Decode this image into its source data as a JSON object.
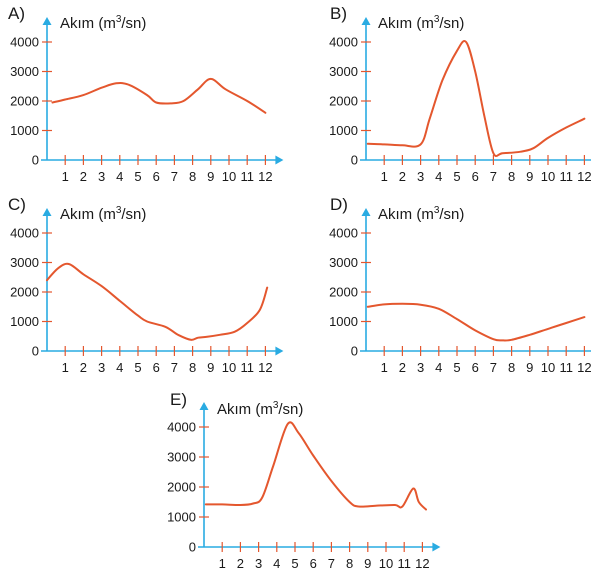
{
  "colors": {
    "axis": "#29abe2",
    "tick": "#e4572e",
    "line": "#e4572e",
    "text": "#1a1a1a"
  },
  "chart_data": [
    {
      "type": "line",
      "panel_label": "A)",
      "ylabel_main": "Akım (m",
      "ylabel_sup": "3",
      "ylabel_end": "/sn)",
      "x_ticks": [
        "1",
        "2",
        "3",
        "4",
        "5",
        "6",
        "7",
        "8",
        "9",
        "10",
        "11",
        "12"
      ],
      "y_ticks": [
        "0",
        "1000",
        "2000",
        "3000",
        "4000"
      ],
      "ylim": [
        0,
        4000
      ],
      "xlim": [
        0,
        12.5
      ],
      "x": [
        0.3,
        1,
        2,
        3,
        3.8,
        4.5,
        5.5,
        6,
        6.8,
        7.5,
        8.3,
        9,
        9.8,
        11,
        12
      ],
      "y": [
        1950,
        2050,
        2200,
        2450,
        2600,
        2550,
        2200,
        1950,
        1920,
        2000,
        2400,
        2750,
        2400,
        2000,
        1600
      ]
    },
    {
      "type": "line",
      "panel_label": "B)",
      "ylabel_main": "Akım (m",
      "ylabel_sup": "3",
      "ylabel_end": "/sn)",
      "x_ticks": [
        "1",
        "2",
        "3",
        "4",
        "5",
        "6",
        "7",
        "8",
        "9",
        "10",
        "11",
        "12"
      ],
      "y_ticks": [
        "0",
        "1000",
        "2000",
        "3000",
        "4000"
      ],
      "ylim": [
        0,
        4000
      ],
      "xlim": [
        0,
        12.5
      ],
      "x": [
        0.1,
        1,
        2,
        3,
        3.5,
        4.2,
        5,
        5.5,
        6,
        6.5,
        7,
        7.5,
        8.5,
        9.2,
        10,
        11,
        12
      ],
      "y": [
        550,
        530,
        500,
        530,
        1400,
        2700,
        3700,
        4000,
        3000,
        1500,
        230,
        230,
        280,
        400,
        750,
        1100,
        1400
      ]
    },
    {
      "type": "line",
      "panel_label": "C)",
      "ylabel_main": "Akım (m",
      "ylabel_sup": "3",
      "ylabel_end": "/sn)",
      "x_ticks": [
        "1",
        "2",
        "3",
        "4",
        "5",
        "6",
        "7",
        "8",
        "9",
        "10",
        "11",
        "12"
      ],
      "y_ticks": [
        "0",
        "1000",
        "2000",
        "3000",
        "4000"
      ],
      "ylim": [
        0,
        4000
      ],
      "xlim": [
        0,
        12.5
      ],
      "x": [
        0,
        0.6,
        1.2,
        2,
        3,
        4,
        5,
        5.5,
        6.5,
        7.2,
        7.9,
        8.3,
        8.8,
        9.5,
        10.3,
        11,
        11.7,
        12.1
      ],
      "y": [
        2400,
        2800,
        2950,
        2600,
        2200,
        1700,
        1200,
        1000,
        820,
        550,
        380,
        450,
        480,
        550,
        650,
        950,
        1400,
        2150
      ]
    },
    {
      "type": "line",
      "panel_label": "D)",
      "ylabel_main": "Akım (m",
      "ylabel_sup": "3",
      "ylabel_end": "/sn)",
      "x_ticks": [
        "1",
        "2",
        "3",
        "4",
        "5",
        "6",
        "7",
        "8",
        "9",
        "10",
        "11",
        "12"
      ],
      "y_ticks": [
        "0",
        "1000",
        "2000",
        "3000",
        "4000"
      ],
      "ylim": [
        0,
        4000
      ],
      "xlim": [
        0,
        12.5
      ],
      "x": [
        0.1,
        1,
        2,
        3,
        4,
        5,
        6,
        7,
        7.5,
        8,
        9,
        10,
        11,
        12
      ],
      "y": [
        1500,
        1580,
        1600,
        1570,
        1430,
        1080,
        700,
        400,
        360,
        380,
        550,
        750,
        950,
        1150
      ]
    },
    {
      "type": "line",
      "panel_label": "E)",
      "ylabel_main": "Akım (m",
      "ylabel_sup": "3",
      "ylabel_end": "/sn)",
      "x_ticks": [
        "1",
        "2",
        "3",
        "4",
        "5",
        "6",
        "7",
        "8",
        "9",
        "10",
        "11",
        "12"
      ],
      "y_ticks": [
        "0",
        "1000",
        "2000",
        "3000",
        "4000"
      ],
      "ylim": [
        0,
        4000
      ],
      "xlim": [
        0,
        12.5
      ],
      "x": [
        0.1,
        1,
        2,
        2.7,
        3.2,
        3.8,
        4.6,
        5.2,
        6,
        7,
        8,
        8.5,
        9.5,
        10.5,
        10.9,
        11.5,
        11.8,
        12.2
      ],
      "y": [
        1420,
        1420,
        1400,
        1450,
        1650,
        2700,
        4100,
        3800,
        3050,
        2200,
        1500,
        1350,
        1380,
        1400,
        1350,
        1950,
        1500,
        1250
      ]
    }
  ]
}
